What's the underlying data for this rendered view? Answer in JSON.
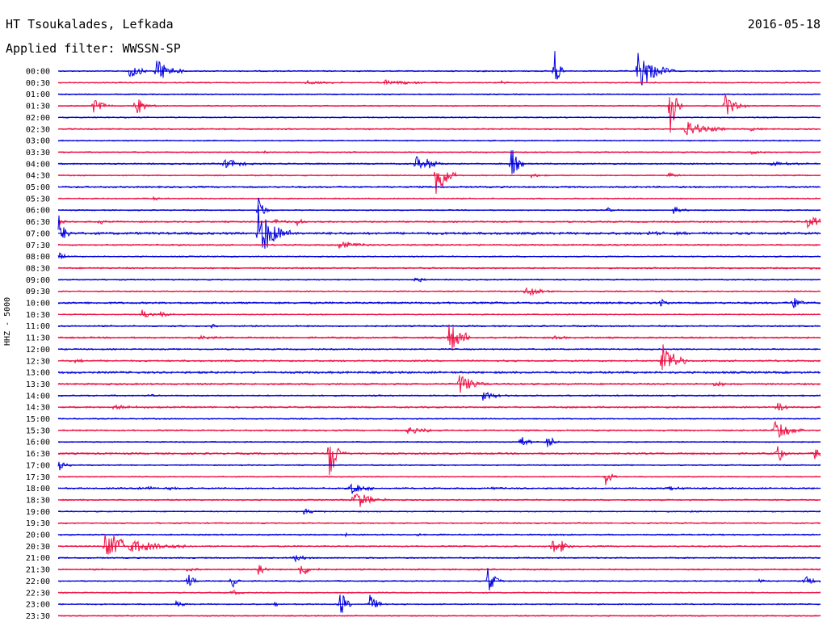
{
  "header": {
    "station": "HT Tsoukalades, Lefkada",
    "date": "2016-05-18",
    "filter": "Applied filter: WWSSN-SP"
  },
  "chart_data": {
    "type": "line",
    "title": "HT Tsoukalades, Lefkada",
    "subtitle": "Applied filter: WWSSN-SP",
    "ylabel": "HHZ - 5000",
    "xlabel": "",
    "colors": [
      "#0000dd",
      "#ee1144"
    ],
    "rows": [
      {
        "label": "00:00",
        "noise": 1,
        "events": [
          [
            160,
            0.9,
            10
          ],
          [
            193,
            1.3,
            14
          ],
          [
            686,
            2.2,
            5
          ],
          [
            790,
            1.8,
            18
          ]
        ]
      },
      {
        "label": "00:30",
        "noise": 1,
        "events": [
          [
            380,
            0.2,
            20
          ],
          [
            475,
            0.25,
            30
          ],
          [
            620,
            0.2,
            6
          ]
        ]
      },
      {
        "label": "01:00",
        "noise": 1,
        "events": []
      },
      {
        "label": "01:30",
        "noise": 1,
        "events": [
          [
            116,
            0.8,
            10
          ],
          [
            168,
            0.9,
            10
          ],
          [
            830,
            2.5,
            6
          ],
          [
            898,
            1.0,
            12
          ]
        ]
      },
      {
        "label": "02:00",
        "noise": 1,
        "events": []
      },
      {
        "label": "02:30",
        "noise": 1.2,
        "events": [
          [
            848,
            0.9,
            20
          ],
          [
            930,
            0.15,
            20
          ]
        ]
      },
      {
        "label": "03:00",
        "noise": 1,
        "events": []
      },
      {
        "label": "03:30",
        "noise": 1,
        "events": [
          [
            325,
            0.2,
            6
          ],
          [
            930,
            0.2,
            10
          ]
        ]
      },
      {
        "label": "04:00",
        "noise": 1.2,
        "events": [
          [
            278,
            0.6,
            14
          ],
          [
            515,
            0.8,
            6
          ],
          [
            528,
            0.6,
            10
          ],
          [
            633,
            1.8,
            6
          ],
          [
            955,
            0.15,
            25
          ]
        ]
      },
      {
        "label": "04:30",
        "noise": 1,
        "events": [
          [
            540,
            2.5,
            10
          ],
          [
            658,
            0.3,
            8
          ],
          [
            828,
            0.3,
            8
          ]
        ]
      },
      {
        "label": "05:00",
        "noise": 1.4,
        "events": []
      },
      {
        "label": "05:30",
        "noise": 1.1,
        "events": [
          [
            190,
            0.2,
            6
          ]
        ]
      },
      {
        "label": "06:00",
        "noise": 1,
        "events": [
          [
            320,
            1.2,
            6
          ],
          [
            752,
            0.25,
            6
          ],
          [
            834,
            0.3,
            8
          ]
        ]
      },
      {
        "label": "06:30",
        "noise": 1.3,
        "events": [
          [
            74,
            0.3,
            6
          ],
          [
            122,
            0.3,
            6
          ],
          [
            340,
            0.3,
            8
          ],
          [
            368,
            0.3,
            8
          ],
          [
            1000,
            0.5,
            26
          ]
        ]
      },
      {
        "label": "07:00",
        "noise": 2,
        "events": [
          [
            73,
            2.0,
            6
          ],
          [
            320,
            2.5,
            16
          ],
          [
            800,
            0.15,
            30
          ]
        ]
      },
      {
        "label": "07:30",
        "noise": 1.3,
        "events": [
          [
            420,
            0.4,
            16
          ]
        ]
      },
      {
        "label": "08:00",
        "noise": 1,
        "events": [
          [
            73,
            0.4,
            6
          ]
        ]
      },
      {
        "label": "08:30",
        "noise": 1.3,
        "events": [
          [
            1005,
            0.2,
            8
          ]
        ]
      },
      {
        "label": "09:00",
        "noise": 1,
        "events": [
          [
            515,
            0.4,
            6
          ]
        ]
      },
      {
        "label": "09:30",
        "noise": 1,
        "events": [
          [
            651,
            0.7,
            14
          ]
        ]
      },
      {
        "label": "10:00",
        "noise": 1.6,
        "events": [
          [
            818,
            0.5,
            6
          ],
          [
            982,
            0.7,
            8
          ]
        ]
      },
      {
        "label": "10:30",
        "noise": 1,
        "events": [
          [
            176,
            0.4,
            8
          ],
          [
            198,
            0.4,
            8
          ]
        ]
      },
      {
        "label": "11:00",
        "noise": 1.3,
        "events": [
          [
            262,
            0.2,
            6
          ]
        ]
      },
      {
        "label": "11:30",
        "noise": 1.4,
        "events": [
          [
            248,
            0.3,
            10
          ],
          [
            556,
            1.8,
            10
          ],
          [
            573,
            0.4,
            8
          ],
          [
            685,
            0.3,
            8
          ]
        ]
      },
      {
        "label": "12:00",
        "noise": 1.2,
        "events": []
      },
      {
        "label": "12:30",
        "noise": 1.4,
        "events": [
          [
            93,
            0.2,
            8
          ],
          [
            820,
            2.0,
            12
          ]
        ]
      },
      {
        "label": "13:00",
        "noise": 1.8,
        "events": []
      },
      {
        "label": "13:30",
        "noise": 1.4,
        "events": [
          [
            569,
            1.0,
            14
          ],
          [
            885,
            0.4,
            8
          ]
        ]
      },
      {
        "label": "14:00",
        "noise": 1.2,
        "events": [
          [
            183,
            0.2,
            6
          ],
          [
            598,
            0.4,
            16
          ]
        ]
      },
      {
        "label": "14:30",
        "noise": 1.4,
        "events": [
          [
            140,
            0.2,
            20
          ],
          [
            962,
            0.6,
            8
          ]
        ]
      },
      {
        "label": "15:00",
        "noise": 1,
        "events": []
      },
      {
        "label": "15:30",
        "noise": 1.3,
        "events": [
          [
            505,
            0.4,
            18
          ],
          [
            958,
            1.0,
            18
          ]
        ]
      },
      {
        "label": "16:00",
        "noise": 1,
        "events": [
          [
            645,
            0.8,
            6
          ],
          [
            677,
            0.9,
            6
          ]
        ]
      },
      {
        "label": "16:30",
        "noise": 1.5,
        "events": [
          [
            408,
            2.4,
            8
          ],
          [
            962,
            1.0,
            6
          ],
          [
            1008,
            0.5,
            20
          ]
        ]
      },
      {
        "label": "17:00",
        "noise": 1,
        "events": [
          [
            73,
            0.5,
            6
          ]
        ]
      },
      {
        "label": "17:30",
        "noise": 1,
        "events": [
          [
            750,
            0.8,
            6
          ]
        ]
      },
      {
        "label": "18:00",
        "noise": 1.3,
        "events": [
          [
            170,
            0.2,
            18
          ],
          [
            210,
            0.2,
            8
          ],
          [
            434,
            0.7,
            12
          ],
          [
            598,
            0.15,
            18
          ],
          [
            826,
            0.2,
            14
          ]
        ]
      },
      {
        "label": "18:30",
        "noise": 1.2,
        "events": [
          [
            438,
            1.0,
            16
          ]
        ]
      },
      {
        "label": "19:00",
        "noise": 1,
        "events": [
          [
            376,
            0.3,
            12
          ],
          [
            855,
            0.1,
            6
          ]
        ]
      },
      {
        "label": "19:30",
        "noise": 1.1,
        "events": []
      },
      {
        "label": "20:00",
        "noise": 1.2,
        "events": [
          [
            428,
            0.2,
            6
          ],
          [
            518,
            0.15,
            6
          ],
          [
            700,
            0.15,
            8
          ]
        ]
      },
      {
        "label": "20:30",
        "noise": 1.2,
        "events": [
          [
            130,
            1.2,
            40
          ],
          [
            684,
            0.8,
            6
          ],
          [
            694,
            0.7,
            6
          ]
        ]
      },
      {
        "label": "21:00",
        "noise": 1.2,
        "events": [
          [
            365,
            0.5,
            8
          ]
        ]
      },
      {
        "label": "21:30",
        "noise": 1.2,
        "events": [
          [
            232,
            0.2,
            8
          ],
          [
            320,
            0.8,
            6
          ],
          [
            372,
            0.7,
            10
          ]
        ]
      },
      {
        "label": "22:00",
        "noise": 1,
        "events": [
          [
            233,
            0.8,
            6
          ],
          [
            287,
            0.8,
            6
          ],
          [
            604,
            1.2,
            8
          ],
          [
            940,
            0.2,
            6
          ],
          [
            996,
            0.7,
            8
          ]
        ]
      },
      {
        "label": "22:30",
        "noise": 1.1,
        "events": [
          [
            288,
            0.3,
            6
          ]
        ]
      },
      {
        "label": "23:00",
        "noise": 1.1,
        "events": [
          [
            218,
            0.3,
            8
          ],
          [
            340,
            0.2,
            6
          ],
          [
            421,
            1.5,
            6
          ],
          [
            458,
            0.9,
            8
          ]
        ]
      },
      {
        "label": "23:30",
        "noise": 1,
        "events": []
      }
    ]
  }
}
